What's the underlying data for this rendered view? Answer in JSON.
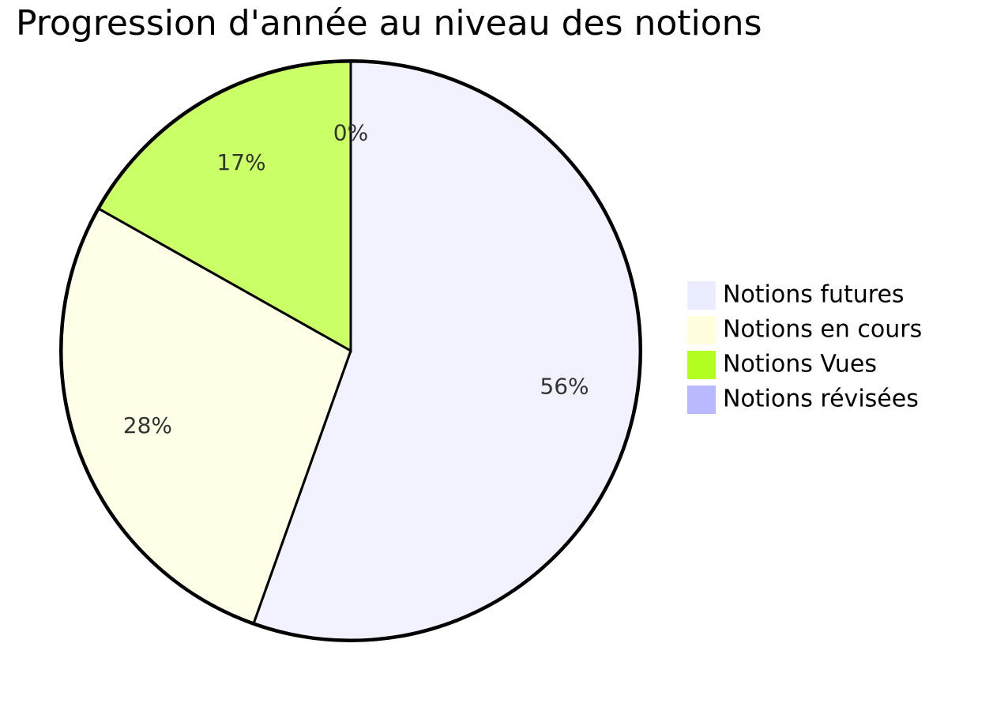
{
  "chart_data": {
    "type": "pie",
    "title": "Progression d'année au niveau des notions",
    "categories": [
      "Notions futures",
      "Notions en cours",
      "Notions Vues",
      "Notions révisées"
    ],
    "values": [
      56,
      28,
      17,
      0
    ],
    "value_labels": [
      "56%",
      "28%",
      "17%",
      "0%"
    ],
    "colors": [
      "#ececff",
      "#ffffde",
      "#b3ff23",
      "#b9b9ff"
    ]
  }
}
